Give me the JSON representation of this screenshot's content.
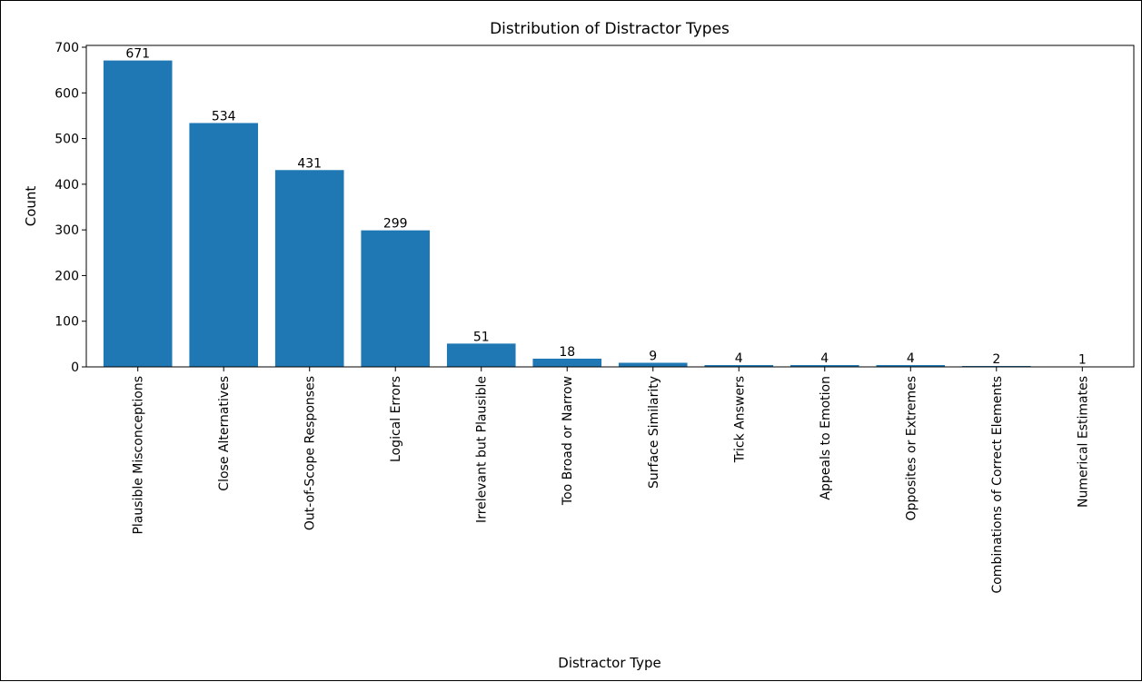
{
  "chart_data": {
    "type": "bar",
    "title": "Distribution of Distractor Types",
    "xlabel": "Distractor Type",
    "ylabel": "Count",
    "categories": [
      "Plausible Misconceptions",
      "Close Alternatives",
      "Out-of-Scope Responses",
      "Logical Errors",
      "Irrelevant but Plausible",
      "Too Broad or Narrow",
      "Surface Similarity",
      "Trick Answers",
      "Appeals to Emotion",
      "Opposites or Extremes",
      "Combinations of Correct Elements",
      "Numerical Estimates"
    ],
    "values": [
      671,
      534,
      431,
      299,
      51,
      18,
      9,
      4,
      4,
      4,
      2,
      1
    ],
    "data_labels": [
      "671",
      "534",
      "431",
      "299",
      "51",
      "18",
      "9",
      "4",
      "4",
      "4",
      "2",
      "1"
    ],
    "ylim": [
      0,
      704
    ],
    "yticks": [
      0,
      100,
      200,
      300,
      400,
      500,
      600,
      700
    ],
    "grid": false,
    "bar_color": "#1f77b4"
  }
}
